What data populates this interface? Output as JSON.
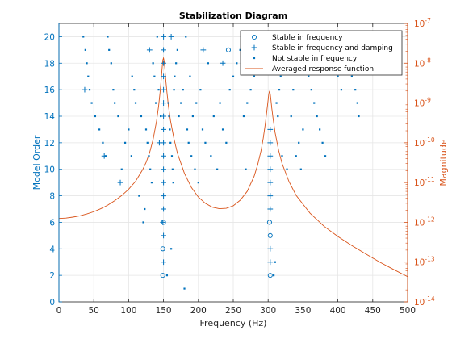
{
  "colors": {
    "left_axis": "#0072bd",
    "right_axis": "#d95319",
    "grid": "#e6e6e6",
    "marker": "#0072bd",
    "curve": "#d95319"
  },
  "chart_data": {
    "type": "scatter",
    "title": "Stabilization Diagram",
    "xlabel": "Frequency (Hz)",
    "ylabel": "Model Order",
    "ylabel_right": "Magnitude",
    "xlim": [
      0,
      500
    ],
    "ylim": [
      0,
      21
    ],
    "ylim_right": [
      1e-14,
      1e-07
    ],
    "right_scale": "log",
    "grid": true,
    "legend_position": "top-right",
    "x_ticks": [
      "0",
      "50",
      "100",
      "150",
      "200",
      "250",
      "300",
      "350",
      "400",
      "450",
      "500"
    ],
    "y_ticks": [
      "0",
      "2",
      "4",
      "6",
      "8",
      "10",
      "12",
      "14",
      "16",
      "18",
      "20"
    ],
    "right_ticks": [
      {
        "base": "10",
        "exp": "-14"
      },
      {
        "base": "10",
        "exp": "-13"
      },
      {
        "base": "10",
        "exp": "-12"
      },
      {
        "base": "10",
        "exp": "-11"
      },
      {
        "base": "10",
        "exp": "-10"
      },
      {
        "base": "10",
        "exp": "-9"
      },
      {
        "base": "10",
        "exp": "-8"
      },
      {
        "base": "10",
        "exp": "-7"
      }
    ],
    "series": [
      {
        "name": "Stable in frequency",
        "marker": "circle",
        "points": [
          [
            149,
            2
          ],
          [
            149,
            4
          ],
          [
            150,
            6
          ],
          [
            303,
            2
          ],
          [
            303,
            5
          ],
          [
            302,
            6
          ],
          [
            243,
            19
          ]
        ]
      },
      {
        "name": "Stable in frequency and damping",
        "marker": "plus",
        "points": [
          [
            150,
            3
          ],
          [
            150,
            5
          ],
          [
            149,
            6
          ],
          [
            150,
            7
          ],
          [
            150,
            8
          ],
          [
            150,
            9
          ],
          [
            150,
            10
          ],
          [
            150,
            11
          ],
          [
            150,
            12
          ],
          [
            150,
            13
          ],
          [
            150,
            14
          ],
          [
            150,
            15
          ],
          [
            150,
            16
          ],
          [
            150,
            17
          ],
          [
            150,
            18
          ],
          [
            150,
            19
          ],
          [
            150,
            20
          ],
          [
            303,
            3
          ],
          [
            303,
            4
          ],
          [
            303,
            7
          ],
          [
            303,
            8
          ],
          [
            303,
            9
          ],
          [
            303,
            10
          ],
          [
            303,
            11
          ],
          [
            303,
            12
          ],
          [
            303,
            13
          ],
          [
            37,
            16
          ],
          [
            65,
            11
          ],
          [
            88,
            9
          ],
          [
            130,
            19
          ],
          [
            161,
            20
          ],
          [
            207,
            19
          ],
          [
            235,
            18
          ],
          [
            144,
            12
          ]
        ]
      },
      {
        "name": "Not stable in frequency",
        "marker": "dot",
        "points": [
          [
            35,
            20
          ],
          [
            38,
            19
          ],
          [
            40,
            18
          ],
          [
            42,
            17
          ],
          [
            44,
            16
          ],
          [
            47,
            15
          ],
          [
            52,
            14
          ],
          [
            58,
            13
          ],
          [
            63,
            12
          ],
          [
            67,
            11
          ],
          [
            70,
            20
          ],
          [
            72,
            19
          ],
          [
            75,
            18
          ],
          [
            78,
            16
          ],
          [
            80,
            15
          ],
          [
            85,
            14
          ],
          [
            90,
            10
          ],
          [
            95,
            12
          ],
          [
            100,
            13
          ],
          [
            104,
            11
          ],
          [
            105,
            17
          ],
          [
            108,
            16
          ],
          [
            110,
            15
          ],
          [
            115,
            8
          ],
          [
            118,
            14
          ],
          [
            121,
            6
          ],
          [
            123,
            7
          ],
          [
            125,
            13
          ],
          [
            127,
            12
          ],
          [
            129,
            11
          ],
          [
            131,
            10
          ],
          [
            133,
            9
          ],
          [
            135,
            18
          ],
          [
            137,
            17
          ],
          [
            139,
            15
          ],
          [
            141,
            20
          ],
          [
            143,
            16
          ],
          [
            146,
            14
          ],
          [
            155,
            2
          ],
          [
            157,
            15
          ],
          [
            158,
            14
          ],
          [
            159,
            13
          ],
          [
            160,
            12
          ],
          [
            161,
            4
          ],
          [
            162,
            11
          ],
          [
            163,
            10
          ],
          [
            164,
            9
          ],
          [
            165,
            16
          ],
          [
            166,
            17
          ],
          [
            168,
            18
          ],
          [
            170,
            19
          ],
          [
            172,
            14
          ],
          [
            175,
            15
          ],
          [
            178,
            16
          ],
          [
            180,
            1
          ],
          [
            182,
            20
          ],
          [
            184,
            13
          ],
          [
            186,
            12
          ],
          [
            188,
            17
          ],
          [
            190,
            11
          ],
          [
            192,
            14
          ],
          [
            195,
            10
          ],
          [
            197,
            15
          ],
          [
            200,
            9
          ],
          [
            203,
            16
          ],
          [
            206,
            13
          ],
          [
            210,
            12
          ],
          [
            214,
            18
          ],
          [
            218,
            11
          ],
          [
            222,
            14
          ],
          [
            227,
            10
          ],
          [
            231,
            15
          ],
          [
            235,
            13
          ],
          [
            240,
            12
          ],
          [
            245,
            16
          ],
          [
            250,
            17
          ],
          [
            255,
            18
          ],
          [
            260,
            19
          ],
          [
            265,
            14
          ],
          [
            268,
            10
          ],
          [
            270,
            15
          ],
          [
            275,
            16
          ],
          [
            280,
            17
          ],
          [
            285,
            18
          ],
          [
            290,
            19
          ],
          [
            295,
            20
          ],
          [
            308,
            2
          ],
          [
            310,
            3
          ],
          [
            312,
            15
          ],
          [
            314,
            14
          ],
          [
            316,
            16
          ],
          [
            318,
            17
          ],
          [
            320,
            11
          ],
          [
            322,
            18
          ],
          [
            325,
            19
          ],
          [
            327,
            10
          ],
          [
            330,
            20
          ],
          [
            333,
            14
          ],
          [
            336,
            16
          ],
          [
            340,
            11
          ],
          [
            344,
            12
          ],
          [
            347,
            10
          ],
          [
            350,
            13
          ],
          [
            355,
            18
          ],
          [
            358,
            17
          ],
          [
            362,
            16
          ],
          [
            366,
            15
          ],
          [
            370,
            14
          ],
          [
            374,
            13
          ],
          [
            378,
            12
          ],
          [
            382,
            11
          ],
          [
            385,
            20
          ],
          [
            390,
            19
          ],
          [
            395,
            18
          ],
          [
            400,
            17
          ],
          [
            405,
            16
          ],
          [
            410,
            20
          ],
          [
            415,
            18
          ],
          [
            420,
            17
          ],
          [
            425,
            16
          ],
          [
            428,
            15
          ],
          [
            430,
            14
          ]
        ]
      },
      {
        "name": "Averaged response function",
        "marker": "line",
        "axis": "right",
        "x": [
          0,
          10,
          20,
          30,
          40,
          50,
          60,
          70,
          80,
          90,
          100,
          110,
          120,
          125,
          130,
          135,
          140,
          143,
          145,
          147,
          148,
          149,
          150,
          151,
          152,
          153,
          155,
          157,
          160,
          165,
          170,
          180,
          190,
          200,
          210,
          220,
          230,
          240,
          250,
          260,
          270,
          280,
          285,
          290,
          293,
          296,
          298,
          300,
          301,
          302,
          303,
          304,
          305,
          307,
          310,
          315,
          320,
          330,
          340,
          360,
          380,
          400,
          420,
          440,
          460,
          480,
          500
        ],
        "y": [
          1.25e-12,
          1.28e-12,
          1.35e-12,
          1.45e-12,
          1.62e-12,
          1.85e-12,
          2.2e-12,
          2.7e-12,
          3.5e-12,
          4.7e-12,
          6.8e-12,
          1.08e-11,
          2.1e-11,
          3.2e-11,
          5.6e-11,
          1.2e-10,
          3.5e-10,
          8.5e-10,
          1.8e-09,
          4.5e-09,
          7.5e-09,
          1.2e-08,
          1.35e-08,
          1.1e-08,
          7e-09,
          4.2e-09,
          1.8e-09,
          8.5e-10,
          3.6e-10,
          1.25e-10,
          5.4e-11,
          1.7e-11,
          7.5e-12,
          4.3e-12,
          3e-12,
          2.4e-12,
          2.2e-12,
          2.25e-12,
          2.6e-12,
          3.6e-12,
          6e-12,
          1.45e-11,
          2.8e-11,
          6.5e-11,
          1.3e-10,
          3e-10,
          6e-10,
          1.2e-09,
          1.7e-09,
          2e-09,
          1.7e-09,
          1.2e-09,
          8e-10,
          4.2e-10,
          1.8e-10,
          6.5e-11,
          3e-11,
          1.05e-11,
          4.8e-12,
          1.7e-12,
          8e-13,
          4.4e-13,
          2.6e-13,
          1.6e-13,
          1e-13,
          6.5e-14,
          4.3e-14
        ]
      }
    ]
  }
}
